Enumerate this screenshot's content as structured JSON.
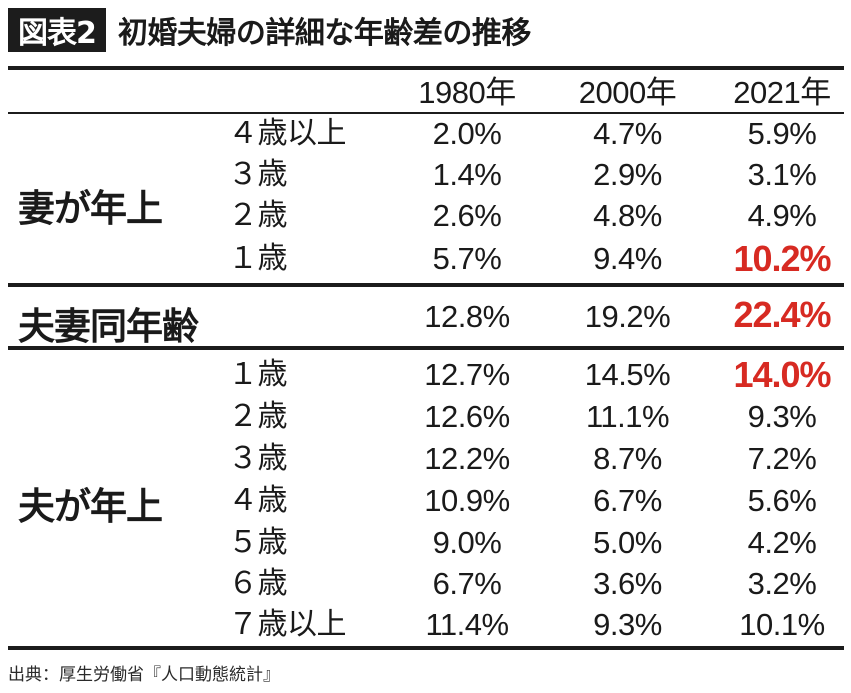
{
  "badge": "図表2",
  "title": "初婚夫婦の詳細な年齢差の推移",
  "columns": [
    "1980年",
    "2000年",
    "2021年"
  ],
  "groups": {
    "wife_older": {
      "label": "妻が年上",
      "rows": [
        {
          "label": "４歳以上",
          "values": [
            "2.0%",
            "4.7%",
            "5.9%"
          ]
        },
        {
          "label": "３歳",
          "values": [
            "1.4%",
            "2.9%",
            "3.1%"
          ]
        },
        {
          "label": "２歳",
          "values": [
            "2.6%",
            "4.8%",
            "4.9%"
          ]
        },
        {
          "label": "１歳",
          "values": [
            "5.7%",
            "9.4%",
            "10.2%"
          ]
        }
      ]
    },
    "same_age": {
      "label": "夫妻同年齢",
      "values": [
        "12.8%",
        "19.2%",
        "22.4%"
      ]
    },
    "husband_older": {
      "label": "夫が年上",
      "rows": [
        {
          "label": "１歳",
          "values": [
            "12.7%",
            "14.5%",
            "14.0%"
          ]
        },
        {
          "label": "２歳",
          "values": [
            "12.6%",
            "11.1%",
            "9.3%"
          ]
        },
        {
          "label": "３歳",
          "values": [
            "12.2%",
            "8.7%",
            "7.2%"
          ]
        },
        {
          "label": "４歳",
          "values": [
            "10.9%",
            "6.7%",
            "5.6%"
          ]
        },
        {
          "label": "５歳",
          "values": [
            "9.0%",
            "5.0%",
            "4.2%"
          ]
        },
        {
          "label": "６歳",
          "values": [
            "6.7%",
            "3.6%",
            "3.2%"
          ]
        },
        {
          "label": "７歳以上",
          "values": [
            "11.4%",
            "9.3%",
            "10.1%"
          ]
        }
      ]
    }
  },
  "highlight_color": "#d72a22",
  "source": "出典：厚生労働省『人口動態統計』"
}
